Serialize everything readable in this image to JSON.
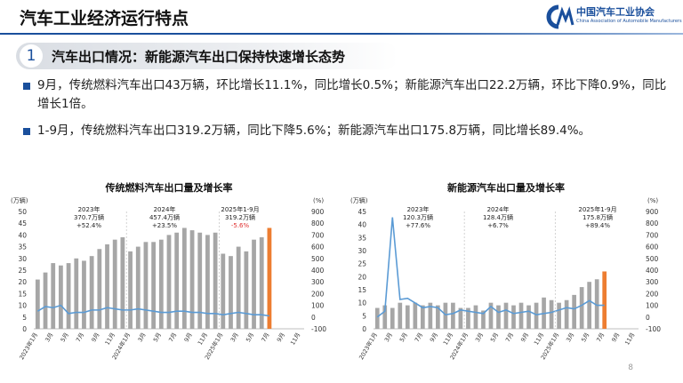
{
  "header": {
    "title": "汽车工业经济运行特点",
    "logo_text": "中国汽车工业协会",
    "logo_subtext": "China Association of Automobile Manufacturers"
  },
  "section": {
    "number": "1",
    "title": "汽车出口情况：新能源汽车出口保持快速增长态势"
  },
  "bullets": [
    "9月，传统燃料汽车出口43万辆，环比增长11.1%，同比增长0.5%；新能源汽车出口22.2万辆，环比下降0.9%，同比增长1倍。",
    "1-9月，传统燃料汽车出口319.2万辆，同比下降5.6%；新能源汽车出口175.8万辆，同比增长89.4%。"
  ],
  "page_number": "8",
  "colors": {
    "accent": "#1a4f9c",
    "bar": "#a6a6a6",
    "highlight_bar": "#ed7d31",
    "line": "#5b9bd5",
    "negative": "#e03030"
  },
  "chart_data": [
    {
      "type": "bar",
      "title": "传统燃料汽车出口量及增长率",
      "ylabel_left": "(万辆)",
      "ylabel_right": "(%)",
      "ylim_left": [
        0,
        50
      ],
      "ylim_right": [
        -100,
        900
      ],
      "yticks_left": [
        "0",
        "5",
        "10",
        "15",
        "20",
        "25",
        "30",
        "35",
        "40",
        "45",
        "50"
      ],
      "yticks_right": [
        "-100",
        "0",
        "100",
        "200",
        "300",
        "400",
        "500",
        "600",
        "700",
        "800",
        "900"
      ],
      "x_tick_labels": [
        "2023年1月",
        "3月",
        "5月",
        "7月",
        "9月",
        "11月",
        "2024年1月",
        "3月",
        "5月",
        "7月",
        "9月",
        "11月",
        "2025年1月",
        "3月",
        "5月",
        "7月",
        "9月",
        "11月"
      ],
      "series": [
        {
          "kind": "bar",
          "values": [
            21,
            24,
            28,
            27,
            28,
            30,
            29,
            31,
            34,
            36,
            38,
            39,
            33,
            35,
            37,
            37,
            38,
            40,
            41,
            43,
            42,
            41,
            40,
            41,
            32,
            31,
            35,
            33,
            38,
            39,
            43
          ]
        },
        {
          "kind": "line",
          "values": [
            50,
            90,
            80,
            100,
            30,
            40,
            40,
            60,
            60,
            80,
            70,
            60,
            60,
            70,
            60,
            50,
            40,
            40,
            50,
            50,
            40,
            40,
            30,
            30,
            20,
            30,
            40,
            30,
            20,
            20,
            10
          ]
        }
      ],
      "highlight_last": true,
      "annotations": [
        {
          "lines": [
            "2023年",
            "370.7万辆",
            "+52.4%"
          ],
          "negative": false
        },
        {
          "lines": [
            "2024年",
            "457.4万辆",
            "+23.5%"
          ],
          "negative": false
        },
        {
          "lines": [
            "2025年1-9月",
            "319.2万辆",
            "-5.6%"
          ],
          "negative": true
        }
      ]
    },
    {
      "type": "bar",
      "title": "新能源汽车出口量及增长率",
      "ylabel_left": "(万辆)",
      "ylabel_right": "(%)",
      "ylim_left": [
        0,
        45
      ],
      "ylim_right": [
        -100,
        900
      ],
      "yticks_left": [
        "0",
        "5",
        "10",
        "15",
        "20",
        "25",
        "30",
        "35",
        "40",
        "45"
      ],
      "yticks_right": [
        "-100",
        "0",
        "100",
        "200",
        "300",
        "400",
        "500",
        "600",
        "700",
        "800",
        "900"
      ],
      "x_tick_labels": [
        "2023年1月",
        "3月",
        "5月",
        "7月",
        "9月",
        "11月",
        "2024年1月",
        "3月",
        "5月",
        "7月",
        "9月",
        "11月",
        "2025年1月",
        "3月",
        "5月",
        "7月",
        "9月",
        "11月"
      ],
      "series": [
        {
          "kind": "bar",
          "values": [
            8,
            9,
            8,
            10,
            9,
            10,
            9,
            10,
            9,
            10,
            10,
            8,
            8,
            9,
            7,
            10,
            9,
            10,
            9,
            10,
            9,
            10,
            12,
            11,
            10,
            11,
            13,
            16,
            18,
            19,
            22
          ]
        },
        {
          "kind": "line",
          "values": [
            0,
            50,
            850,
            150,
            160,
            120,
            80,
            90,
            80,
            20,
            30,
            60,
            50,
            40,
            30,
            90,
            40,
            60,
            30,
            40,
            50,
            20,
            30,
            40,
            60,
            80,
            70,
            100,
            140,
            100,
            100
          ]
        }
      ],
      "highlight_last": true,
      "annotations": [
        {
          "lines": [
            "2023年",
            "120.3万辆",
            "+77.6%"
          ],
          "negative": false
        },
        {
          "lines": [
            "2024年",
            "128.4万辆",
            "+6.7%"
          ],
          "negative": false
        },
        {
          "lines": [
            "2025年1-9月",
            "175.8万辆",
            "+89.4%"
          ],
          "negative": false
        }
      ]
    }
  ]
}
